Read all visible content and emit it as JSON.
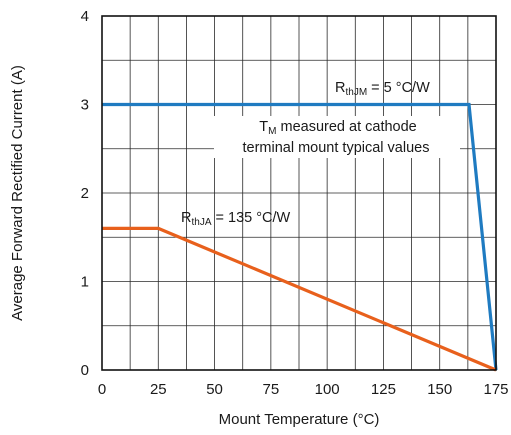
{
  "chart_data": {
    "type": "line",
    "title": "",
    "xlabel": "Mount Temperature (°C)",
    "ylabel": "Average Forward Rectified Current (A)",
    "xlim": [
      0,
      175
    ],
    "ylim": [
      0,
      4
    ],
    "xticks": [
      0,
      25,
      50,
      75,
      100,
      125,
      150,
      175
    ],
    "yticks": [
      0,
      1,
      2,
      3,
      4
    ],
    "x_minor_step": 12.5,
    "y_minor_step": 0.5,
    "grid": true,
    "series": [
      {
        "name": "RthJM = 5 °C/W",
        "color": "#1f7bc1",
        "points": [
          [
            0,
            3.0
          ],
          [
            163,
            3.0
          ],
          [
            175,
            0.0
          ]
        ]
      },
      {
        "name": "RthJA = 135 °C/W",
        "color": "#e8601c",
        "points": [
          [
            0,
            1.6
          ],
          [
            25,
            1.6
          ],
          [
            175,
            0.0
          ]
        ]
      }
    ],
    "annotations": {
      "rjm": {
        "main": "R",
        "sub": "thJM",
        "rest": " = 5 °C/W"
      },
      "note_line1": {
        "main": "T",
        "sub": "M",
        "rest": " measured at cathode"
      },
      "note_line2": "terminal mount typical values",
      "rja": {
        "main": "R",
        "sub": "thJA",
        "rest": " = 135 °C/W"
      }
    }
  }
}
